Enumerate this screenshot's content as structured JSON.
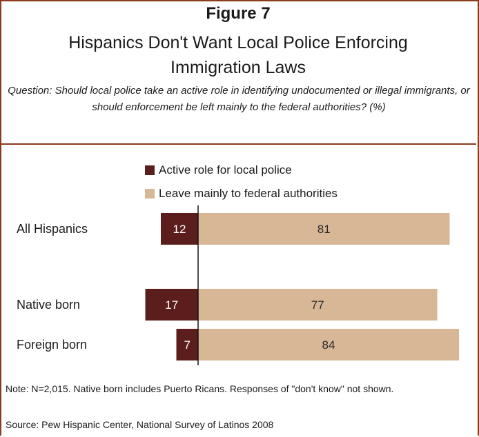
{
  "header": {
    "figure_number": "Figure 7",
    "title": "Hispanics Don't Want Local Police Enforcing Immigration Laws",
    "question": "Question: Should local police take an active role in identifying undocumented or illegal immigrants, or should enforcement be left mainly to the federal authorities? (%)"
  },
  "colors": {
    "active": "#5c1d1d",
    "federal": "#d8b796",
    "border": "#8b3a1c"
  },
  "chart_data": {
    "type": "bar",
    "orientation": "horizontal-diverging",
    "categories": [
      "All Hispanics",
      "Native born",
      "Foreign born"
    ],
    "series": [
      {
        "name": "Active role for local police",
        "values": [
          12,
          17,
          7
        ]
      },
      {
        "name": "Leave mainly to federal authorities",
        "values": [
          81,
          77,
          84
        ]
      }
    ],
    "legend": [
      "Active role for local police",
      "Leave mainly to federal authorities"
    ],
    "legend_position": "top"
  },
  "footer": {
    "note": "Note: N=2,015. Native born includes Puerto Ricans. Responses of \"don't know\" not shown.",
    "source": "Source: Pew Hispanic Center, National Survey of Latinos 2008"
  }
}
